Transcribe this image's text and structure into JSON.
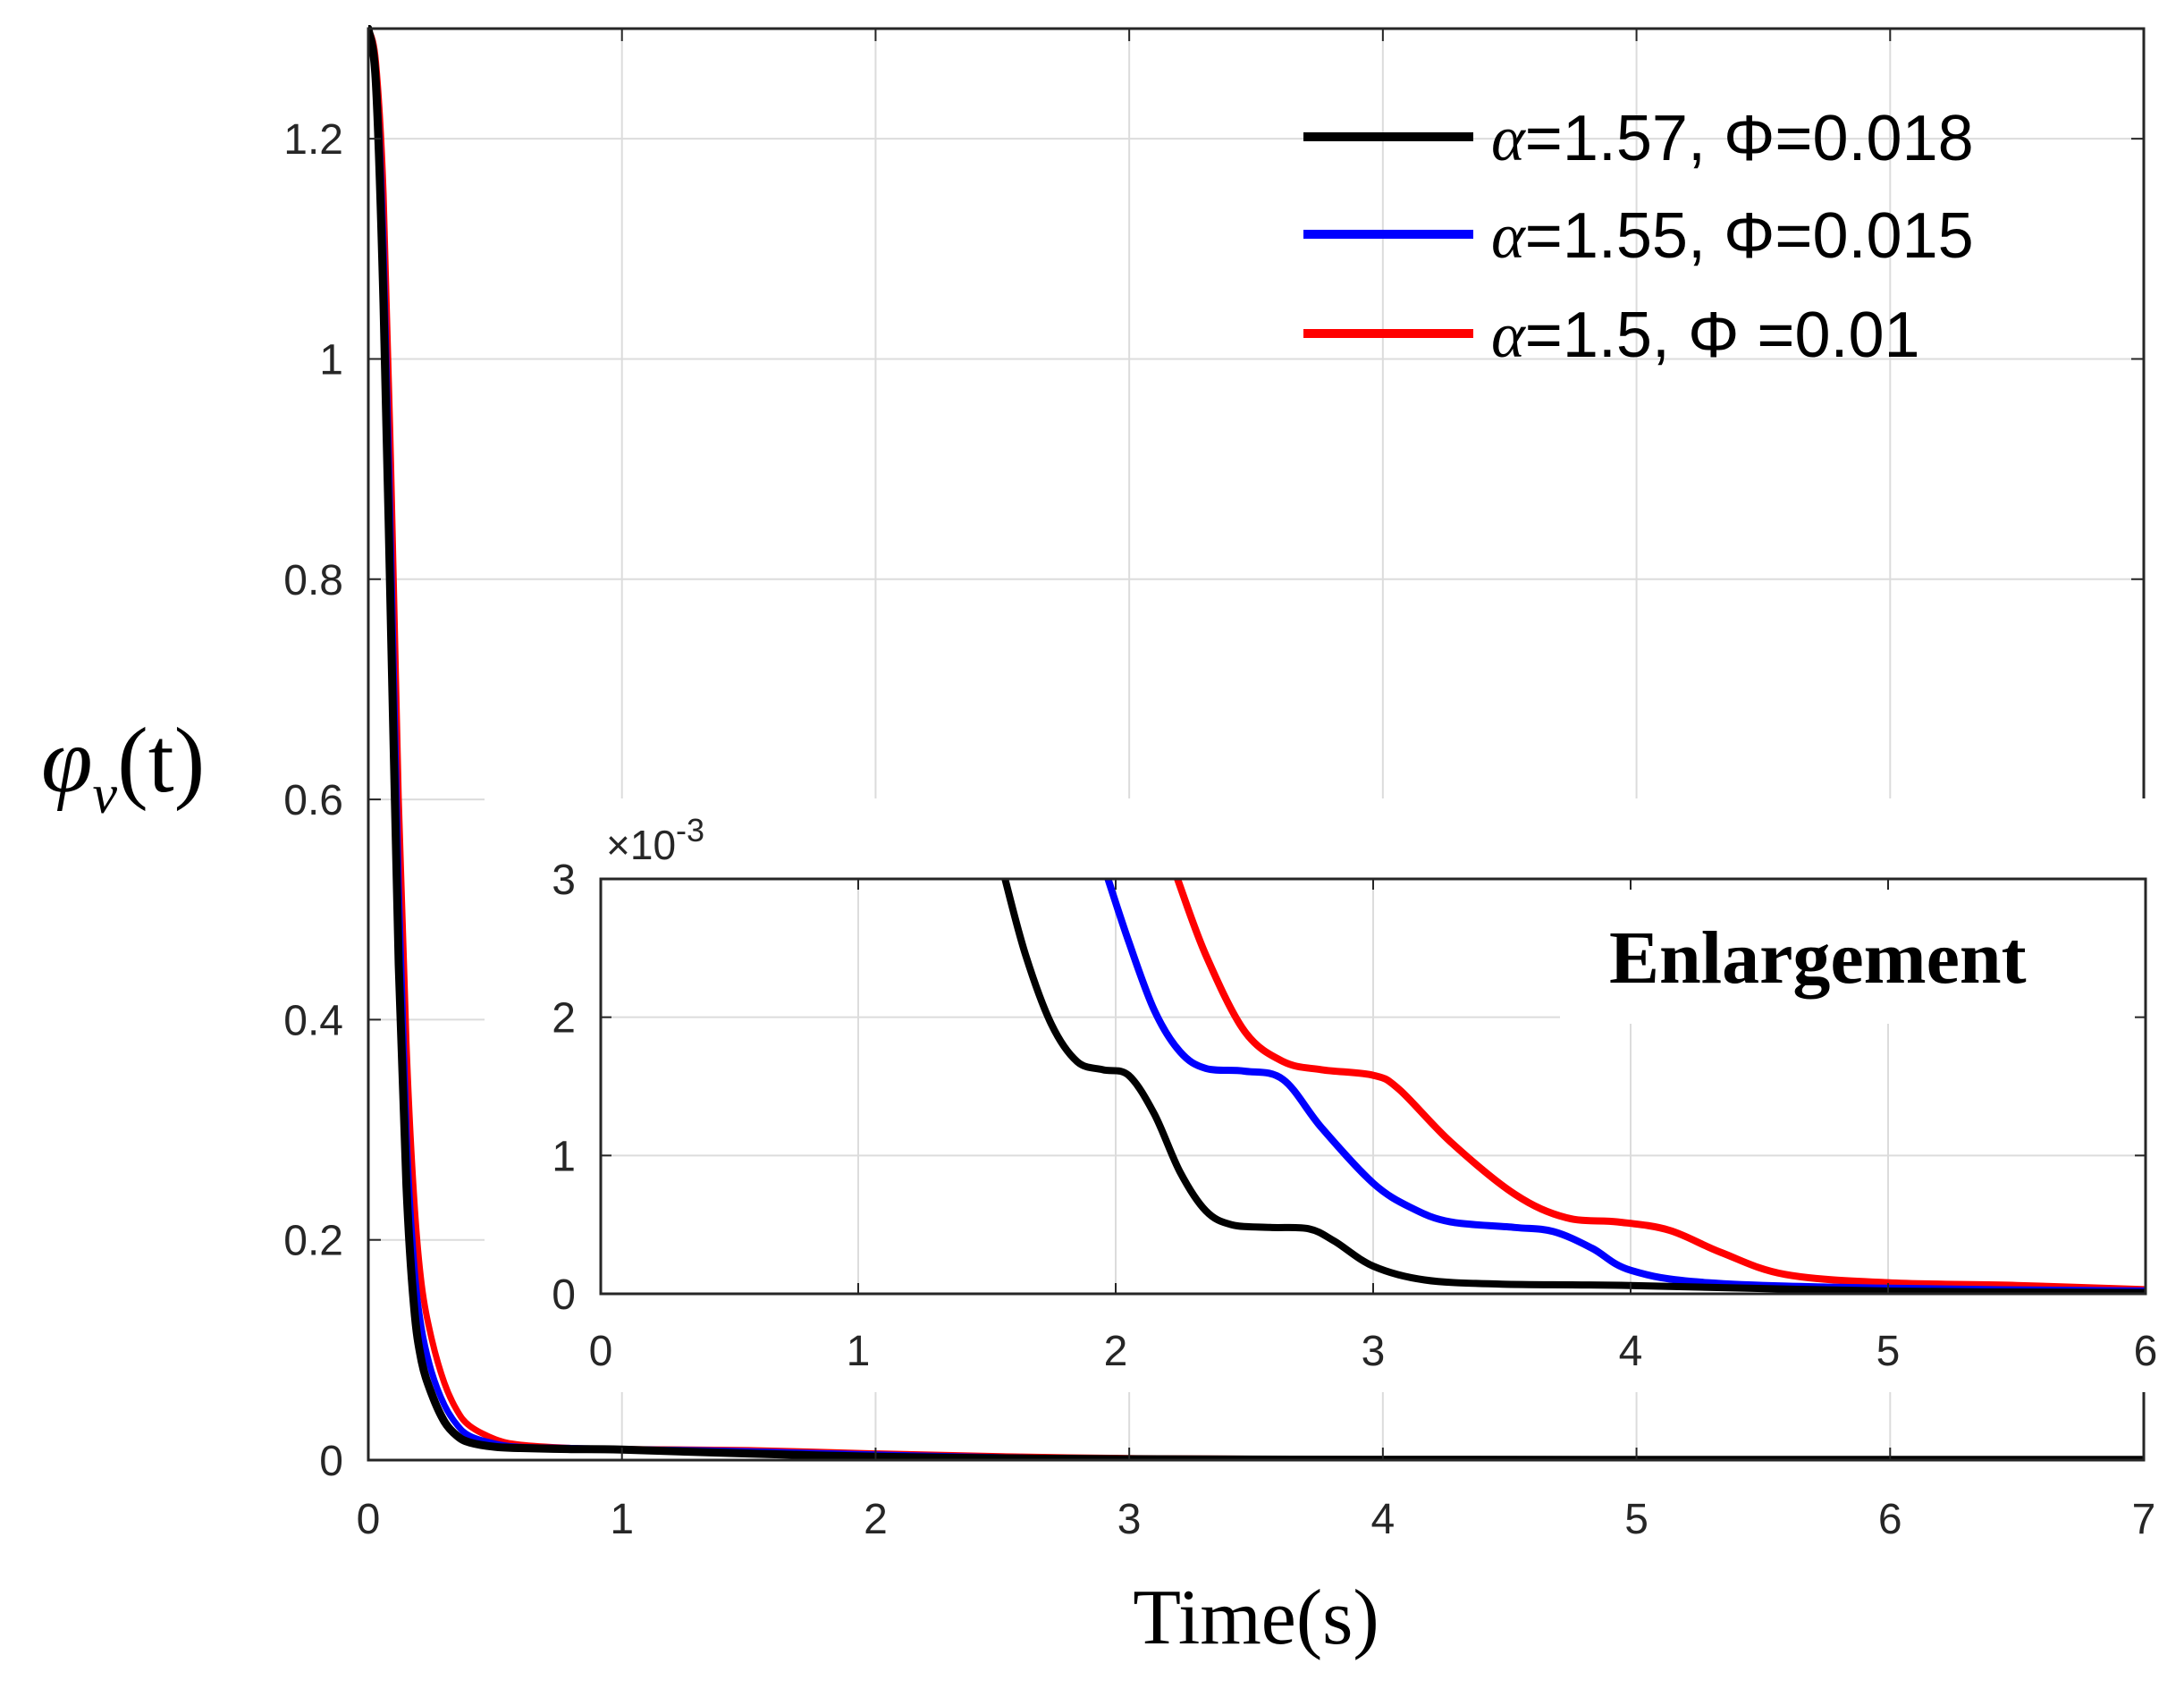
{
  "chart_data": [
    {
      "id": "main",
      "type": "line",
      "title": "",
      "xlabel": "Time(s)",
      "ylabel": "φv(t)",
      "ylabel_main": "φ",
      "ylabel_sub": "v",
      "ylabel_arg": "(t)",
      "xlim": [
        0,
        7
      ],
      "ylim": [
        0,
        1.3
      ],
      "xticks": [
        0,
        1,
        2,
        3,
        4,
        5,
        6,
        7
      ],
      "xtick_labels": [
        "0",
        "1",
        "2",
        "3",
        "4",
        "5",
        "6",
        "7"
      ],
      "yticks": [
        0,
        0.2,
        0.4,
        0.6,
        0.8,
        1.0,
        1.2
      ],
      "ytick_labels": [
        "0",
        "0.2",
        "0.4",
        "0.6",
        "0.8",
        "1",
        "1.2"
      ],
      "grid": true,
      "legend_position": "top-right",
      "series": [
        {
          "name": "α=1.57, Φ=0.018",
          "legend_alpha": "α",
          "legend_text": "=1.57, Φ=0.018",
          "color": "#000000",
          "x": [
            0,
            0.03,
            0.06,
            0.09,
            0.12,
            0.15,
            0.18,
            0.21,
            0.25,
            0.3,
            0.35,
            0.4,
            0.5,
            0.6,
            0.8,
            1.0,
            1.5,
            2.0,
            2.5,
            3.0,
            4.0,
            5.0,
            6.0,
            7.0
          ],
          "y": [
            1.3,
            1.25,
            1.05,
            0.75,
            0.45,
            0.25,
            0.14,
            0.09,
            0.06,
            0.035,
            0.022,
            0.016,
            0.012,
            0.011,
            0.01,
            0.0095,
            0.006,
            0.003,
            0.0016,
            0.0008,
            0.0003,
            0.0002,
            0.0002,
            0.0002
          ]
        },
        {
          "name": "α=1.55, Φ=0.015",
          "legend_alpha": "α",
          "legend_text": "=1.55, Φ=0.015",
          "color": "#0000ff",
          "x": [
            0,
            0.03,
            0.06,
            0.09,
            0.12,
            0.15,
            0.18,
            0.21,
            0.25,
            0.3,
            0.35,
            0.4,
            0.5,
            0.6,
            0.8,
            1.0,
            1.5,
            2.0,
            2.5,
            3.0,
            4.0,
            5.0,
            6.0,
            7.0
          ],
          "y": [
            1.3,
            1.26,
            1.1,
            0.82,
            0.52,
            0.3,
            0.18,
            0.12,
            0.08,
            0.05,
            0.032,
            0.022,
            0.015,
            0.012,
            0.011,
            0.01,
            0.008,
            0.005,
            0.0025,
            0.0012,
            0.0005,
            0.0002,
            0.0002,
            0.0002
          ]
        },
        {
          "name": "α=1.5, Φ=0.01",
          "legend_alpha": "α",
          "legend_text": "=1.5,   Φ =0.01",
          "color": "#ff0000",
          "x": [
            0,
            0.03,
            0.06,
            0.09,
            0.12,
            0.15,
            0.18,
            0.21,
            0.25,
            0.3,
            0.35,
            0.4,
            0.5,
            0.6,
            0.8,
            1.0,
            1.5,
            2.0,
            2.5,
            3.0,
            4.0,
            5.0,
            6.0,
            7.0
          ],
          "y": [
            1.3,
            1.27,
            1.15,
            0.9,
            0.6,
            0.38,
            0.24,
            0.16,
            0.11,
            0.07,
            0.045,
            0.031,
            0.019,
            0.014,
            0.011,
            0.01,
            0.009,
            0.006,
            0.0035,
            0.0018,
            0.0007,
            0.0003,
            0.0002,
            0.0002
          ]
        }
      ]
    },
    {
      "id": "inset",
      "type": "line",
      "title": "Enlargement",
      "xlabel": "",
      "ylabel": "",
      "y_multiplier_label": "×10",
      "y_multiplier_exp": "-3",
      "xlim": [
        0,
        6
      ],
      "ylim": [
        0,
        3
      ],
      "xticks": [
        0,
        1,
        2,
        3,
        4,
        5,
        6
      ],
      "xtick_labels": [
        "0",
        "1",
        "2",
        "3",
        "4",
        "5",
        "6"
      ],
      "yticks": [
        0,
        1,
        2,
        3
      ],
      "ytick_labels": [
        "0",
        "1",
        "2",
        "3"
      ],
      "grid": true,
      "series": [
        {
          "name": "α=1.57, Φ=0.018",
          "color": "#000000",
          "x": [
            1.57,
            1.65,
            1.75,
            1.85,
            1.95,
            2.05,
            2.15,
            2.25,
            2.35,
            2.45,
            2.6,
            2.75,
            2.85,
            3.0,
            3.2,
            3.5,
            4.0,
            5.0,
            6.0
          ],
          "y": [
            3.0,
            2.45,
            1.95,
            1.68,
            1.62,
            1.58,
            1.3,
            0.88,
            0.6,
            0.5,
            0.48,
            0.47,
            0.38,
            0.2,
            0.1,
            0.07,
            0.06,
            0.02,
            0.01
          ]
        },
        {
          "name": "α=1.55, Φ=0.015",
          "color": "#0000ff",
          "x": [
            1.97,
            2.05,
            2.15,
            2.25,
            2.35,
            2.5,
            2.65,
            2.8,
            3.0,
            3.15,
            3.3,
            3.55,
            3.7,
            3.85,
            4.0,
            4.3,
            5.0,
            6.0
          ],
          "y": [
            3.0,
            2.55,
            2.05,
            1.75,
            1.63,
            1.61,
            1.55,
            1.2,
            0.8,
            0.62,
            0.52,
            0.48,
            0.45,
            0.33,
            0.17,
            0.08,
            0.04,
            0.02
          ]
        },
        {
          "name": "α=1.5, Φ=0.01",
          "color": "#ff0000",
          "x": [
            2.24,
            2.35,
            2.5,
            2.65,
            2.8,
            3.0,
            3.1,
            3.3,
            3.55,
            3.75,
            3.95,
            4.15,
            4.35,
            4.6,
            5.0,
            5.5,
            6.0
          ],
          "y": [
            3.0,
            2.45,
            1.9,
            1.68,
            1.62,
            1.58,
            1.48,
            1.1,
            0.72,
            0.55,
            0.52,
            0.46,
            0.3,
            0.14,
            0.08,
            0.06,
            0.03
          ]
        }
      ]
    }
  ]
}
